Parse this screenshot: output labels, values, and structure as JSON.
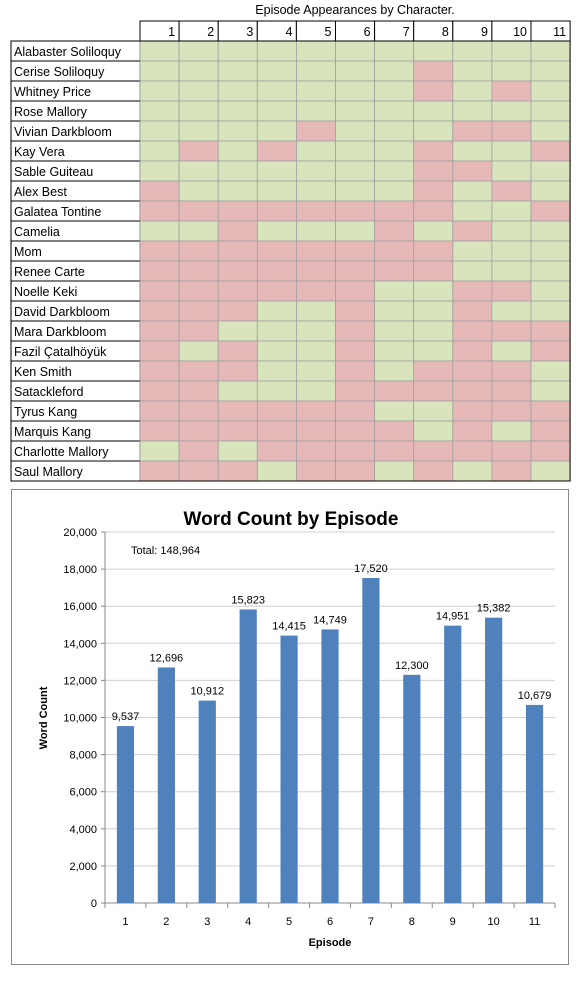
{
  "appearance_grid": {
    "title": "Episode Appearances by Character.",
    "episodes": [
      "1",
      "2",
      "3",
      "4",
      "5",
      "6",
      "7",
      "8",
      "9",
      "10",
      "11"
    ],
    "colors": {
      "appears": "#d7e4bc",
      "absent": "#e6b8b7",
      "gridline": "#a0a0a0"
    },
    "characters": [
      {
        "name": "Alabaster Soliloquy",
        "appears": [
          1,
          1,
          1,
          1,
          1,
          1,
          1,
          1,
          1,
          1,
          1
        ]
      },
      {
        "name": "Cerise Soliloquy",
        "appears": [
          1,
          1,
          1,
          1,
          1,
          1,
          1,
          0,
          1,
          1,
          1
        ]
      },
      {
        "name": "Whitney Price",
        "appears": [
          1,
          1,
          1,
          1,
          1,
          1,
          1,
          0,
          1,
          0,
          1
        ]
      },
      {
        "name": "Rose Mallory",
        "appears": [
          1,
          1,
          1,
          1,
          1,
          1,
          1,
          1,
          1,
          1,
          1
        ]
      },
      {
        "name": "Vivian Darkbloom",
        "appears": [
          1,
          1,
          1,
          1,
          0,
          1,
          1,
          1,
          0,
          0,
          1
        ]
      },
      {
        "name": "Kay Vera",
        "appears": [
          1,
          0,
          1,
          0,
          1,
          1,
          1,
          0,
          1,
          1,
          0
        ]
      },
      {
        "name": "Sable Guiteau",
        "appears": [
          1,
          1,
          1,
          1,
          1,
          1,
          1,
          0,
          0,
          1,
          1
        ]
      },
      {
        "name": "Alex Best",
        "appears": [
          0,
          1,
          1,
          1,
          1,
          1,
          1,
          0,
          1,
          0,
          1
        ]
      },
      {
        "name": "Galatea Tontine",
        "appears": [
          0,
          0,
          0,
          0,
          0,
          0,
          0,
          0,
          1,
          1,
          0
        ]
      },
      {
        "name": "Camelia",
        "appears": [
          1,
          1,
          0,
          1,
          1,
          1,
          0,
          1,
          0,
          1,
          1
        ]
      },
      {
        "name": "Mom",
        "appears": [
          0,
          0,
          0,
          0,
          0,
          0,
          0,
          0,
          1,
          1,
          1
        ]
      },
      {
        "name": "Renee Carte",
        "appears": [
          0,
          0,
          0,
          0,
          0,
          0,
          0,
          0,
          1,
          1,
          1
        ]
      },
      {
        "name": "Noelle Keki",
        "appears": [
          0,
          0,
          0,
          0,
          0,
          0,
          1,
          1,
          0,
          0,
          1
        ]
      },
      {
        "name": "David Darkbloom",
        "appears": [
          0,
          0,
          0,
          1,
          1,
          0,
          1,
          1,
          0,
          1,
          1
        ]
      },
      {
        "name": "Mara Darkbloom",
        "appears": [
          0,
          0,
          1,
          1,
          1,
          0,
          1,
          1,
          0,
          0,
          0
        ]
      },
      {
        "name": "Fazil Çatalhöyük",
        "appears": [
          0,
          1,
          0,
          1,
          1,
          0,
          1,
          1,
          0,
          1,
          0
        ]
      },
      {
        "name": "Ken Smith",
        "appears": [
          0,
          0,
          0,
          1,
          1,
          0,
          1,
          0,
          0,
          0,
          1
        ]
      },
      {
        "name": "Satackleford",
        "appears": [
          0,
          0,
          1,
          1,
          1,
          0,
          0,
          0,
          0,
          0,
          1
        ]
      },
      {
        "name": "Tyrus Kang",
        "appears": [
          0,
          0,
          0,
          0,
          0,
          0,
          1,
          1,
          0,
          0,
          0
        ]
      },
      {
        "name": "Marquis Kang",
        "appears": [
          0,
          0,
          0,
          0,
          0,
          0,
          0,
          1,
          0,
          1,
          0
        ]
      },
      {
        "name": "Charlotte Mallory",
        "appears": [
          1,
          0,
          1,
          0,
          0,
          0,
          0,
          0,
          0,
          0,
          0
        ]
      },
      {
        "name": "Saul Mallory",
        "appears": [
          0,
          0,
          0,
          1,
          0,
          0,
          1,
          0,
          1,
          0,
          1
        ]
      }
    ]
  },
  "chart_data": {
    "type": "bar",
    "title": "Word Count by Episode",
    "annotation": "Total: 148,964",
    "xlabel": "Episode",
    "ylabel": "Word Count",
    "categories": [
      "1",
      "2",
      "3",
      "4",
      "5",
      "6",
      "7",
      "8",
      "9",
      "10",
      "11"
    ],
    "values": [
      9537,
      12696,
      10912,
      15823,
      14415,
      14749,
      17520,
      12300,
      14951,
      15382,
      10679
    ],
    "data_labels": [
      "9,537",
      "12,696",
      "10,912",
      "15,823",
      "14,415",
      "14,749",
      "17,520",
      "12,300",
      "14,951",
      "15,382",
      "10,679"
    ],
    "ylim": [
      0,
      20000
    ],
    "y_ticks": [
      0,
      2000,
      4000,
      6000,
      8000,
      10000,
      12000,
      14000,
      16000,
      18000,
      20000
    ],
    "y_tick_labels": [
      "0",
      "2,000",
      "4,000",
      "6,000",
      "8,000",
      "10,000",
      "12,000",
      "14,000",
      "16,000",
      "18,000",
      "20,000"
    ],
    "bar_color": "#4f81bd",
    "grid": true,
    "legend": false
  }
}
